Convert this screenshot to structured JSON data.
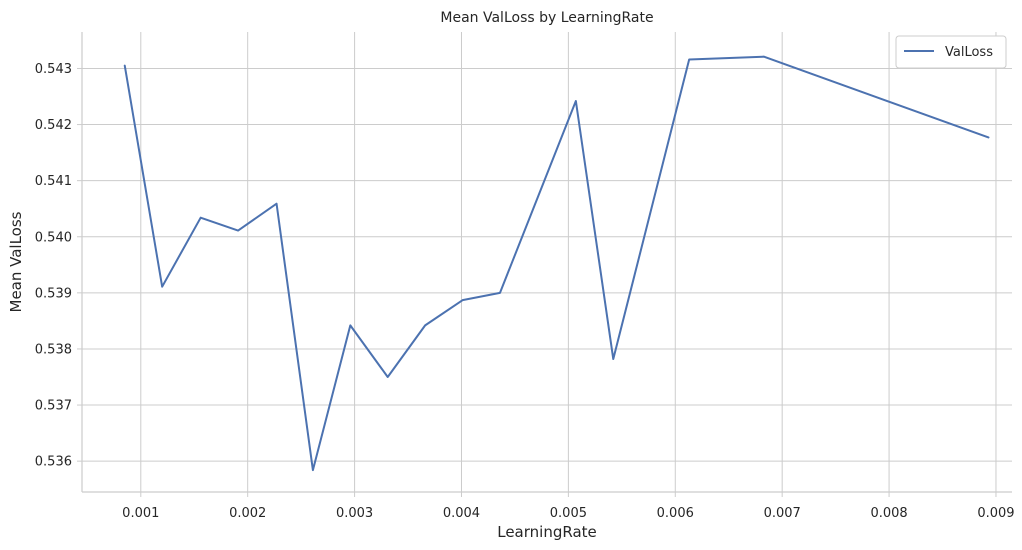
{
  "chart_data": {
    "type": "line",
    "title": "Mean ValLoss by LearningRate",
    "xlabel": "LearningRate",
    "ylabel": "Mean ValLoss",
    "xlim": [
      0.00045,
      0.00915
    ],
    "ylim": [
      0.53545,
      0.54365
    ],
    "xticks": [
      0.001,
      0.002,
      0.003,
      0.004,
      0.005,
      0.006,
      0.007,
      0.008,
      0.009
    ],
    "xtick_labels": [
      "0.001",
      "0.002",
      "0.003",
      "0.004",
      "0.005",
      "0.006",
      "0.007",
      "0.008",
      "0.009"
    ],
    "yticks": [
      0.536,
      0.537,
      0.538,
      0.539,
      0.54,
      0.541,
      0.542,
      0.543
    ],
    "ytick_labels": [
      "0.536",
      "0.537",
      "0.538",
      "0.539",
      "0.540",
      "0.541",
      "0.542",
      "0.543"
    ],
    "grid": true,
    "legend_position": "top-right",
    "series": [
      {
        "name": "ValLoss",
        "color": "#4c72b0",
        "x": [
          0.00085,
          0.0012,
          0.00156,
          0.00191,
          0.00227,
          0.00261,
          0.00296,
          0.00331,
          0.00366,
          0.00401,
          0.00436,
          0.00507,
          0.00542,
          0.00613,
          0.00683,
          0.00893
        ],
        "y": [
          0.54305,
          0.53911,
          0.54034,
          0.54011,
          0.54059,
          0.53584,
          0.53842,
          0.5375,
          0.53842,
          0.53887,
          0.539,
          0.54242,
          0.53782,
          0.54316,
          0.54321,
          0.54177
        ]
      }
    ]
  }
}
